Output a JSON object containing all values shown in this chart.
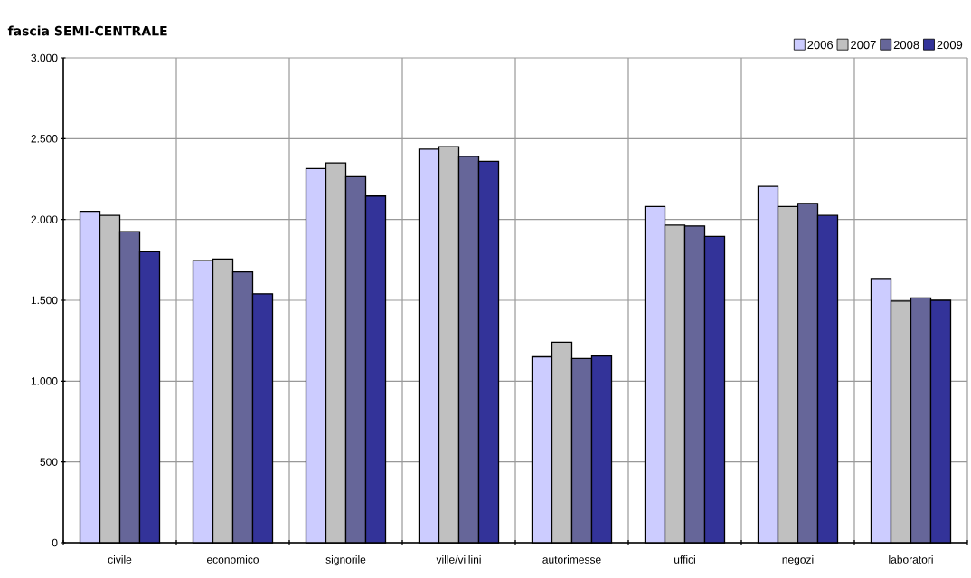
{
  "chart_data": {
    "type": "bar",
    "title": "fascia SEMI-CENTRALE",
    "categories": [
      "civile",
      "economico",
      "signorile",
      "ville/villini",
      "autorimesse",
      "uffici",
      "negozi",
      "laboratori"
    ],
    "series": [
      {
        "name": "2006",
        "color": "#ccccff",
        "values": [
          2050,
          1745,
          2315,
          2435,
          1150,
          2080,
          2205,
          1635
        ]
      },
      {
        "name": "2007",
        "color": "#c0c0c0",
        "values": [
          2025,
          1755,
          2350,
          2450,
          1240,
          1965,
          2080,
          1495
        ]
      },
      {
        "name": "2008",
        "color": "#666699",
        "values": [
          1925,
          1675,
          2265,
          2390,
          1140,
          1960,
          2100,
          1515
        ]
      },
      {
        "name": "2009",
        "color": "#333399",
        "values": [
          1800,
          1540,
          2145,
          2360,
          1155,
          1895,
          2025,
          1500
        ]
      }
    ],
    "ylim": [
      0,
      3000
    ],
    "yticks": [
      {
        "value": 0,
        "label": "0"
      },
      {
        "value": 500,
        "label": "500"
      },
      {
        "value": 1000,
        "label": "1.000"
      },
      {
        "value": 1500,
        "label": "1.500"
      },
      {
        "value": 2000,
        "label": "2.000"
      },
      {
        "value": 2500,
        "label": "2.500"
      },
      {
        "value": 3000,
        "label": "3.000"
      }
    ],
    "grid": true,
    "legend": "top right"
  }
}
